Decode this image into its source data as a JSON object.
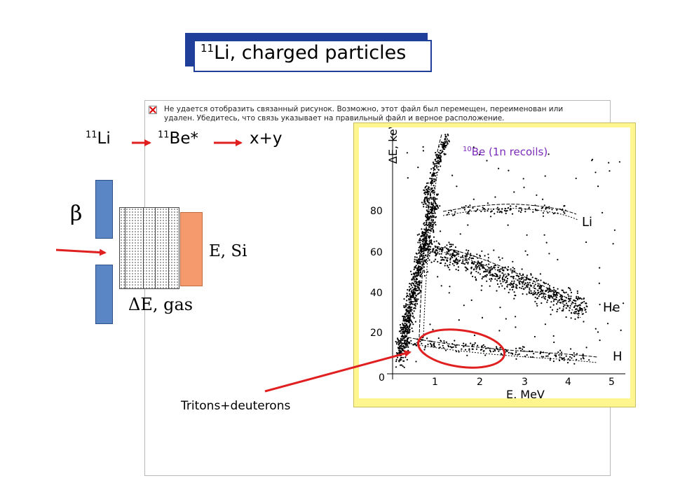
{
  "title": {
    "superscript": "11",
    "text": "Li, charged particles"
  },
  "broken_link": {
    "message": "Не удается отобразить связанный рисунок. Возможно, этот файл был перемещен, переименован или удален. Убедитесь, что связь указывает на правильный файл и верное расположение."
  },
  "decay_chain": [
    {
      "superscript": "11",
      "symbol": "Li"
    },
    {
      "superscript": "11",
      "symbol": "Be*"
    },
    {
      "superscript": "",
      "symbol": "x+y"
    }
  ],
  "detector": {
    "beta_label": "β",
    "si_label": "E, Si",
    "gas_label": "ΔE, gas"
  },
  "plot": {
    "ylabel": "ΔE, keV",
    "xlabel": "E,  MeV",
    "x_ticks": [
      "0",
      "1",
      "2",
      "3",
      "4",
      "5"
    ],
    "y_ticks": [
      "20",
      "40",
      "60",
      "80"
    ],
    "band_labels": [
      "Li",
      "He",
      "H"
    ],
    "annotation": {
      "superscript": "10",
      "text": "Be (1n recoils)"
    }
  },
  "tritons_label": "Tritons+deuterons",
  "colors": {
    "title_shadow": "#1f3f9a",
    "detector_plate": "#5b86c6",
    "si_detector": "#f59a6c",
    "plot_frame": "#fff690",
    "arrow_red": "#e02020",
    "annotation_purple": "#7a2ab8"
  }
}
